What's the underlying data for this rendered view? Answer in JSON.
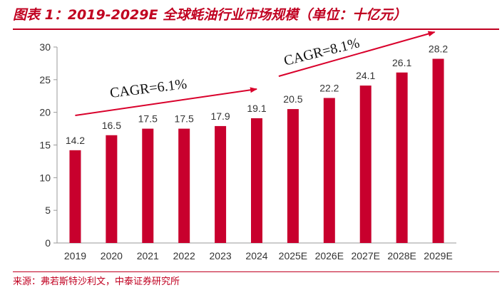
{
  "header": {
    "title": "图表 1：2019-2029E 全球蚝油行业市场规模（单位：十亿元）"
  },
  "footer": {
    "source": "来源：弗若斯特沙利文，中泰证券研究所"
  },
  "colors": {
    "accent": "#c00020",
    "bar": "#c8002d",
    "arrow": "#d9002b"
  },
  "chart_data": {
    "type": "bar",
    "categories": [
      "2019",
      "2020",
      "2021",
      "2022",
      "2023",
      "2024",
      "2025E",
      "2026E",
      "2027E",
      "2028E",
      "2029E"
    ],
    "values": [
      14.2,
      16.5,
      17.5,
      17.5,
      17.9,
      19.1,
      20.5,
      22.2,
      24.1,
      26.1,
      28.2
    ],
    "data_labels": [
      "14.2",
      "16.5",
      "17.5",
      "17.5",
      "17.9",
      "19.1",
      "20.5",
      "22.2",
      "24.1",
      "26.1",
      "28.2"
    ],
    "ylim": [
      0,
      30
    ],
    "yticks": [
      "0",
      "5",
      "10",
      "15",
      "20",
      "25",
      "30"
    ],
    "grid": false,
    "annotations": [
      {
        "text": "CAGR=6.1%",
        "from": "2019",
        "to": "2024"
      },
      {
        "text": "CAGR=8.1%",
        "from": "2025E",
        "to": "2029E"
      }
    ]
  }
}
